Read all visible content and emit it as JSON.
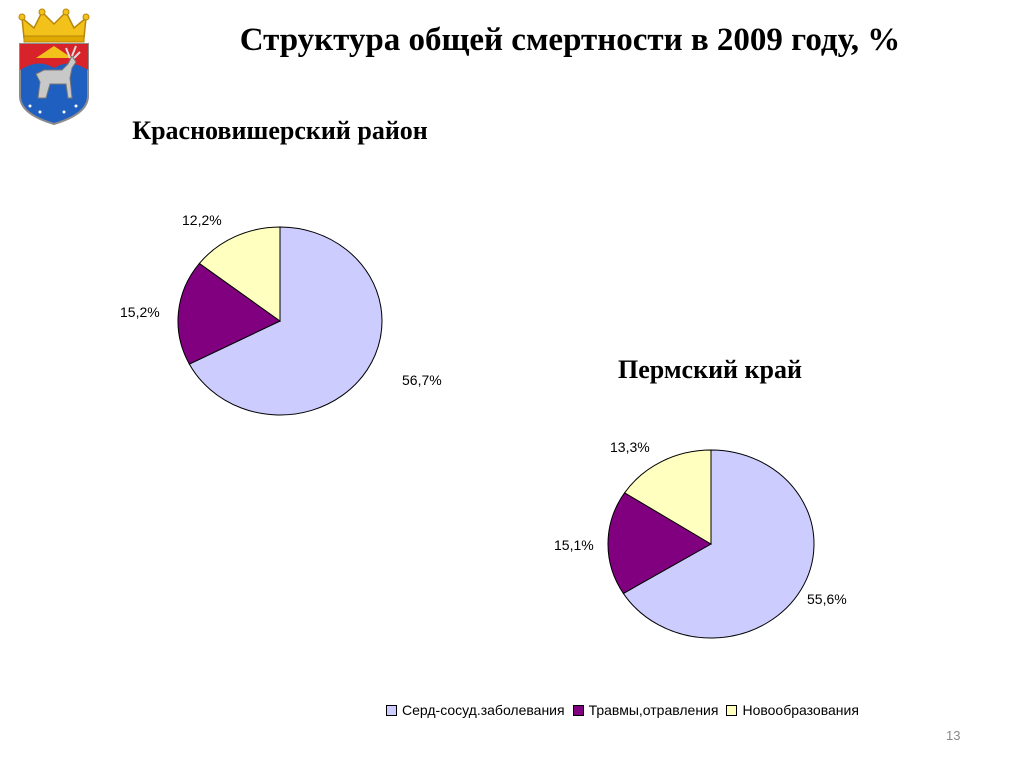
{
  "slide": {
    "title": "Структура общей смертности в 2009 году, %",
    "slide_number": "13"
  },
  "colors": {
    "cardio": "#ccccff",
    "trauma": "#800080",
    "neoplasm": "#ffffc0",
    "outline": "#000000",
    "slide_number": "#8a8a8a"
  },
  "legend": [
    {
      "label": "Серд-сосуд.заболевания",
      "color": "#ccccff"
    },
    {
      "label": "Травмы,отравления",
      "color": "#800080"
    },
    {
      "label": "Новообразования",
      "color": "#ffffc0"
    }
  ],
  "chart_data": [
    {
      "type": "pie",
      "title": "Красновишерский район",
      "categories": [
        "Серд-сосуд.заболевания",
        "Травмы,отравления",
        "Новообразования"
      ],
      "values": [
        56.7,
        15.2,
        12.2
      ],
      "labels": [
        "56,7%",
        "15,2%",
        "12,2%"
      ],
      "colors": [
        "#ccccff",
        "#800080",
        "#ffffc0"
      ]
    },
    {
      "type": "pie",
      "title": "Пермский край",
      "categories": [
        "Серд-сосуд.заболевания",
        "Травмы,отравления",
        "Новообразования"
      ],
      "values": [
        55.6,
        15.1,
        13.3
      ],
      "labels": [
        "55,6%",
        "15,1%",
        "13,3%"
      ],
      "colors": [
        "#ccccff",
        "#800080",
        "#ffffc0"
      ]
    }
  ]
}
